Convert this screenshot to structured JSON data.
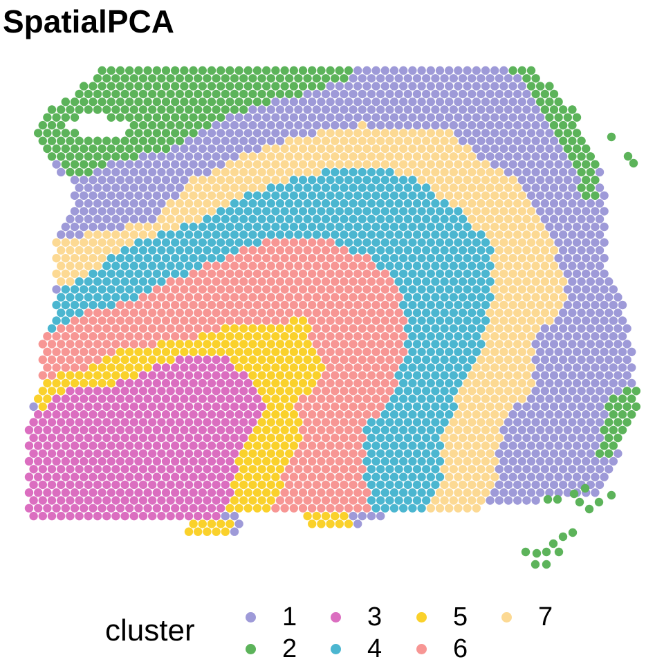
{
  "title": "SpatialPCA",
  "chart_data": {
    "type": "scatter",
    "title": "SpatialPCA",
    "xlabel": "",
    "ylabel": "",
    "grid": false,
    "legend_position": "bottom",
    "legend": {
      "title": "cluster",
      "entries": [
        {
          "label": "1",
          "color": "#9E9AD8"
        },
        {
          "label": "2",
          "color": "#5CB35A"
        },
        {
          "label": "3",
          "color": "#DB6EC0"
        },
        {
          "label": "4",
          "color": "#4BB6D0"
        },
        {
          "label": "5",
          "color": "#FAD12B"
        },
        {
          "label": "6",
          "color": "#F79694"
        },
        {
          "label": "7",
          "color": "#FCD993"
        }
      ]
    },
    "region_description": "Hexagonal spot array of a tissue section colored by spatial cluster: outer band cluster 2, then layered bands 1, 7, 4, 6, 5 and an inner lower-left core of cluster 3."
  }
}
